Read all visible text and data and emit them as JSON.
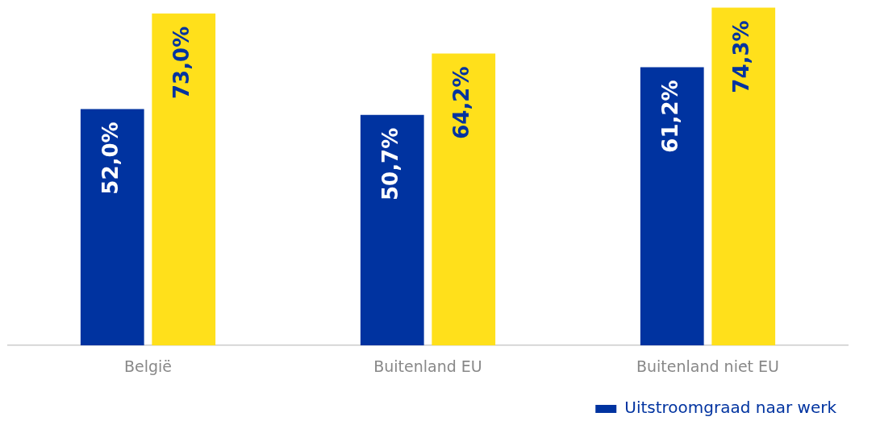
{
  "chart_data": {
    "type": "bar",
    "categories": [
      "België",
      "Buitenland EU",
      "Buitenland niet EU"
    ],
    "series": [
      {
        "name": "Uitstroomgraad naar werk",
        "color": "#0033a0",
        "values": [
          52.0,
          50.7,
          61.2
        ],
        "value_labels": [
          "52,0%",
          "50,7%",
          "61,2%"
        ]
      },
      {
        "color": "#ffe01b",
        "values": [
          73.0,
          64.2,
          74.3
        ],
        "value_labels": [
          "73,0%",
          "64,2%",
          "74,3%"
        ]
      }
    ],
    "legend": "bottom right",
    "grid": false
  }
}
